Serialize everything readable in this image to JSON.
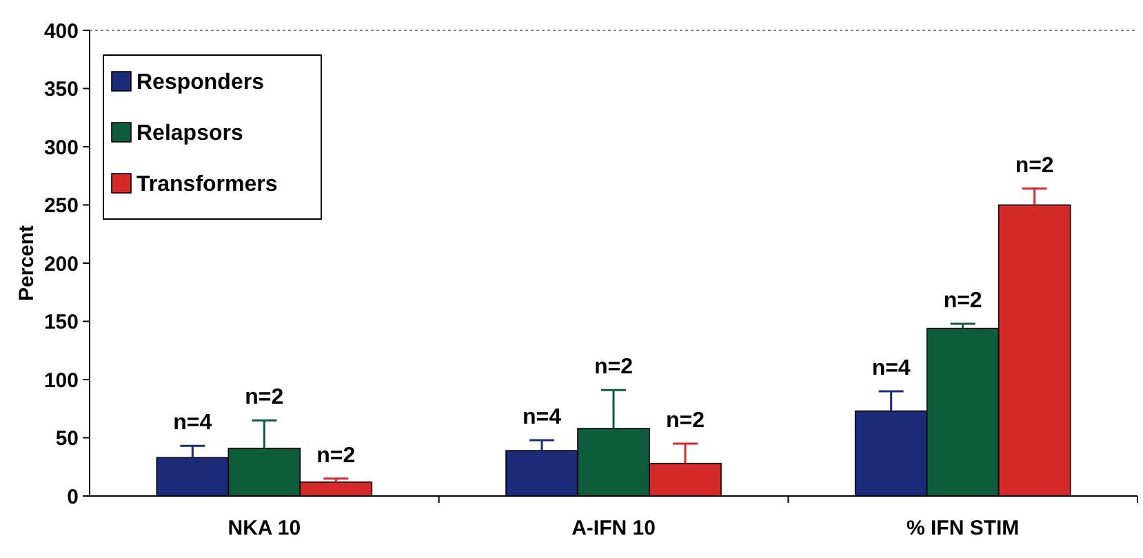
{
  "chart_data": {
    "type": "bar",
    "ylabel": "Percent",
    "categories": [
      "NKA 10",
      "A-IFN 10",
      "% IFN STIM"
    ],
    "series": [
      {
        "name": "Responders",
        "color": "#1c2a7a",
        "values": [
          33,
          39,
          73
        ],
        "errors": [
          [
            33,
            43
          ],
          [
            39,
            48
          ],
          [
            73,
            90
          ]
        ]
      },
      {
        "name": "Relapsors",
        "color": "#0f5c3c",
        "values": [
          41,
          58,
          144
        ],
        "errors": [
          [
            41,
            65
          ],
          [
            58,
            91
          ],
          [
            144,
            148
          ]
        ]
      },
      {
        "name": "Transformers",
        "color": "#d42a2a",
        "values": [
          12,
          28,
          250
        ],
        "errors": [
          [
            12,
            15
          ],
          [
            28,
            45
          ],
          [
            250,
            264
          ]
        ]
      }
    ],
    "ylim": [
      0,
      400
    ],
    "yticks": [
      0,
      50,
      100,
      150,
      200,
      250,
      300,
      350,
      400
    ],
    "grid": false,
    "legend": "top left",
    "annotations": [
      "n=4",
      "n=2",
      "n=2",
      "n=4",
      "n=2",
      "n=2",
      "n=4",
      "n=2",
      "n=2"
    ]
  }
}
